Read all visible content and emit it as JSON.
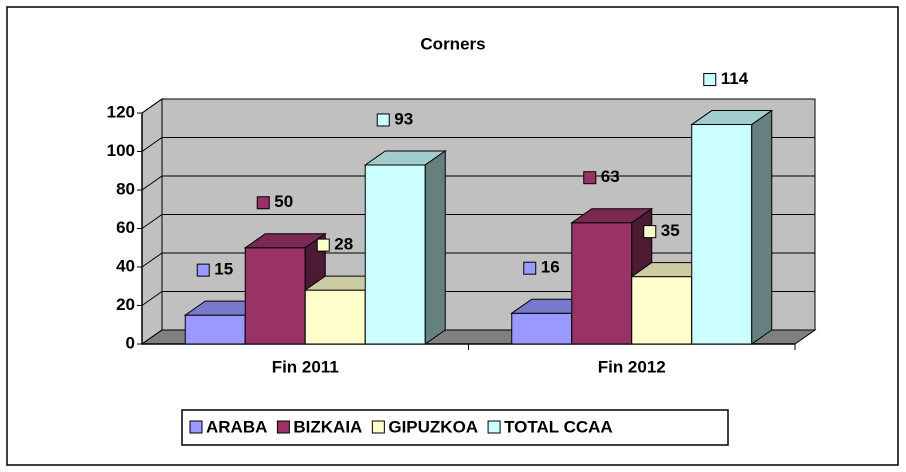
{
  "chart_data": {
    "type": "bar3d",
    "title": "Corners",
    "categories": [
      "Fin 2011",
      "Fin 2012"
    ],
    "series": [
      {
        "name": "ARABA",
        "color": "#9999ff",
        "values": [
          15,
          16
        ]
      },
      {
        "name": "BIZKAIA",
        "color": "#993366",
        "values": [
          50,
          63
        ]
      },
      {
        "name": "GIPUZKOA",
        "color": "#ffffcc",
        "values": [
          28,
          35
        ]
      },
      {
        "name": "TOTAL CCAA",
        "color": "#ccffff",
        "values": [
          93,
          114
        ]
      }
    ],
    "ylim": [
      0,
      120
    ],
    "yticks": [
      0,
      20,
      40,
      60,
      80,
      100,
      120
    ],
    "grid": true,
    "legend": "bottom"
  }
}
